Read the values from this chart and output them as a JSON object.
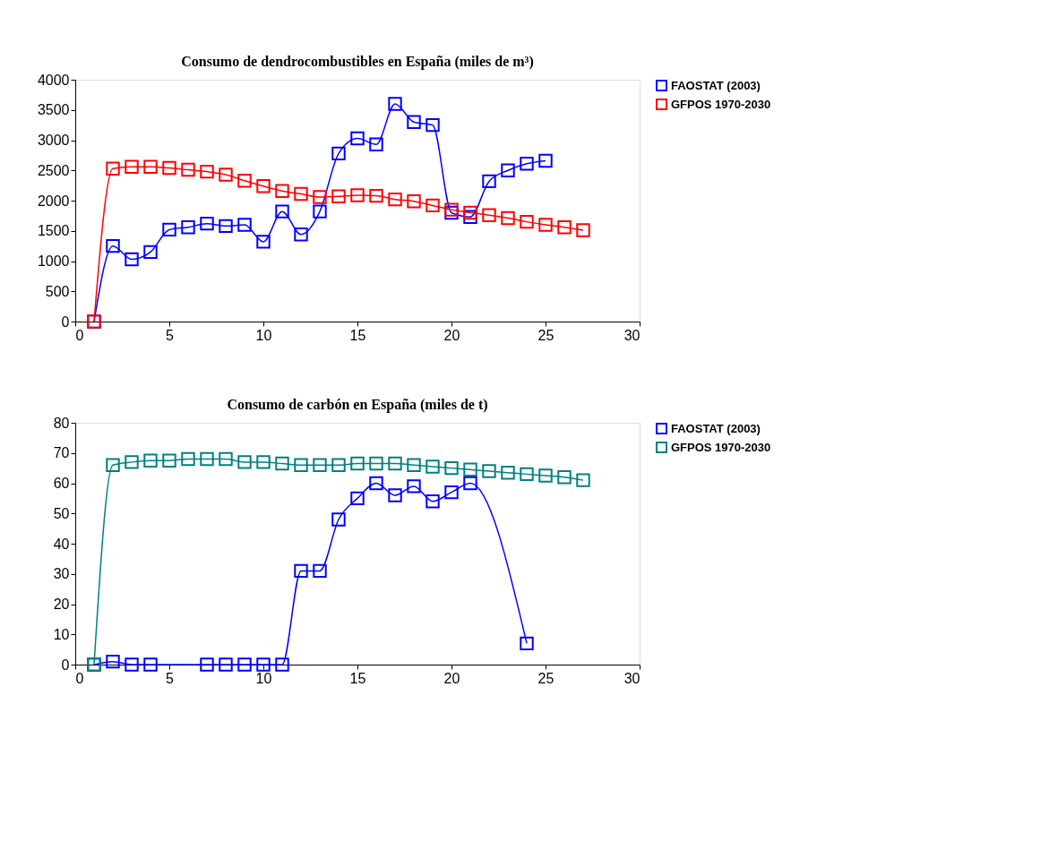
{
  "chart_data": [
    {
      "type": "line",
      "title": "Consumo de dendrocombustibles en España (miles de m³)",
      "xlim": [
        0,
        30
      ],
      "xticks": [
        0,
        5,
        10,
        15,
        20,
        25,
        30
      ],
      "ylim": [
        0,
        4000
      ],
      "yticks": [
        0,
        500,
        1000,
        1500,
        2000,
        2500,
        3000,
        3500,
        4000
      ],
      "grid": false,
      "legend": "right",
      "marker": "square",
      "line_style": "solid",
      "series": [
        {
          "name": "FAOSTAT (2003)",
          "color": "#0000ff",
          "x": [
            1,
            2,
            3,
            4,
            5,
            6,
            7,
            8,
            9,
            10,
            11,
            12,
            13,
            14,
            15,
            16,
            17,
            18,
            19,
            20,
            21,
            22,
            23,
            24,
            25
          ],
          "values": [
            0,
            1250,
            1030,
            1150,
            1520,
            1560,
            1620,
            1580,
            1600,
            1320,
            1820,
            1440,
            1820,
            2780,
            3030,
            2930,
            3600,
            3300,
            3250,
            1800,
            1730,
            2320,
            2500,
            2610,
            2660
          ]
        },
        {
          "name": "GFPOS  1970-2030",
          "color": "#ff0000",
          "x": [
            1,
            2,
            3,
            4,
            5,
            6,
            7,
            8,
            9,
            10,
            11,
            12,
            13,
            14,
            15,
            16,
            17,
            18,
            19,
            20,
            21,
            22,
            23,
            24,
            25,
            26,
            27
          ],
          "values": [
            0,
            2530,
            2560,
            2560,
            2540,
            2510,
            2480,
            2430,
            2330,
            2240,
            2160,
            2110,
            2060,
            2070,
            2090,
            2080,
            2020,
            1990,
            1920,
            1850,
            1800,
            1760,
            1710,
            1650,
            1600,
            1560,
            1510
          ]
        }
      ]
    },
    {
      "type": "line",
      "title": "Consumo de carbón en España (miles de t)",
      "xlim": [
        0,
        30
      ],
      "xticks": [
        0,
        5,
        10,
        15,
        20,
        25,
        30
      ],
      "ylim": [
        0,
        80
      ],
      "yticks": [
        0,
        10,
        20,
        30,
        40,
        50,
        60,
        70,
        80
      ],
      "grid": false,
      "legend": "right",
      "marker": "square",
      "line_style": "solid",
      "series": [
        {
          "name": "FAOSTAT (2003)",
          "color": "#0000ff",
          "x": [
            1,
            2,
            3,
            4,
            7,
            8,
            9,
            10,
            11,
            12,
            13,
            14,
            15,
            16,
            17,
            18,
            19,
            20,
            21,
            24
          ],
          "values": [
            0,
            1,
            0,
            0,
            0,
            0,
            0,
            0,
            0,
            31,
            31,
            48,
            55,
            60,
            56,
            59,
            54,
            57,
            60,
            7
          ]
        },
        {
          "name": "GFPOS  1970-2030",
          "color": "#008080",
          "x": [
            1,
            2,
            3,
            4,
            5,
            6,
            7,
            8,
            9,
            10,
            11,
            12,
            13,
            14,
            15,
            16,
            17,
            18,
            19,
            20,
            21,
            22,
            23,
            24,
            25,
            26,
            27
          ],
          "values": [
            0,
            66,
            67,
            67.5,
            67.5,
            68,
            68,
            68,
            67,
            67,
            66.5,
            66,
            66,
            66,
            66.5,
            66.5,
            66.5,
            66,
            65.5,
            65,
            64.5,
            64,
            63.5,
            63,
            62.5,
            62,
            61
          ]
        }
      ]
    }
  ]
}
